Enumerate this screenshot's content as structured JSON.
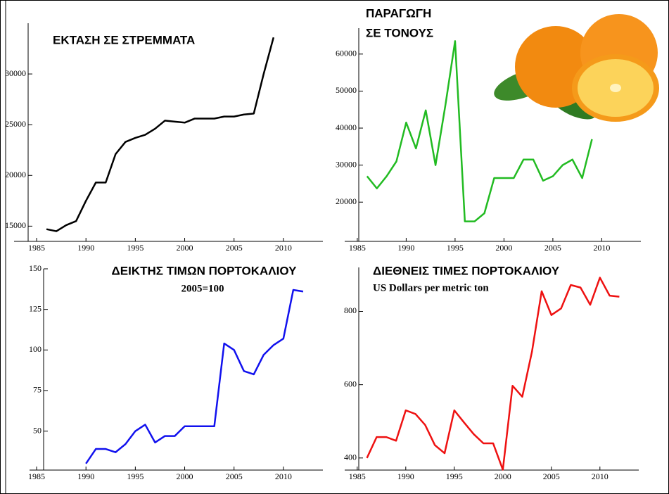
{
  "chart_data": [
    {
      "type": "line",
      "title": "ΕΚΤΑΣΗ ΣΕ ΣΤΡΕΜΜΑΤΑ",
      "x": [
        1986,
        1987,
        1988,
        1989,
        1990,
        1991,
        1992,
        1993,
        1994,
        1995,
        1996,
        1997,
        1998,
        1999,
        2000,
        2001,
        2002,
        2003,
        2004,
        2005,
        2006,
        2007,
        2008,
        2009
      ],
      "series": [
        {
          "color": "#000000",
          "values": [
            14700,
            14500,
            15100,
            15500,
            17500,
            19300,
            19300,
            22100,
            23300,
            23700,
            24000,
            24600,
            25400,
            25300,
            25200,
            25600,
            25600,
            25600,
            25800,
            25800,
            26000,
            26100,
            30000,
            33600
          ]
        }
      ],
      "xlim": [
        1984,
        2014
      ],
      "xticks": [
        1985,
        1990,
        1995,
        2000,
        2005,
        2010
      ],
      "ylim": [
        13500,
        35000
      ],
      "yticks": [
        15000,
        20000,
        25000,
        30000
      ]
    },
    {
      "type": "line",
      "title": "ΠΑΡΑΓΩΓΗ",
      "subtitle": "ΣΕ ΤΟΝΟΥΣ",
      "x": [
        1986,
        1987,
        1988,
        1989,
        1990,
        1991,
        1992,
        1993,
        1994,
        1995,
        1996,
        1997,
        1998,
        1999,
        2000,
        2001,
        2002,
        2003,
        2004,
        2005,
        2006,
        2007,
        2008,
        2009
      ],
      "series": [
        {
          "color": "#22bb22",
          "values": [
            27000,
            23700,
            27000,
            31000,
            41500,
            34500,
            44800,
            30000,
            46000,
            63500,
            14800,
            14800,
            17000,
            26500,
            26500,
            26500,
            31500,
            31500,
            25800,
            27000,
            30000,
            31500,
            26500,
            37000
          ]
        }
      ],
      "xlim": [
        1984,
        2014
      ],
      "xticks": [
        1985,
        1990,
        1995,
        2000,
        2005,
        2010
      ],
      "ylim": [
        9400,
        67000
      ],
      "yticks": [
        20000,
        30000,
        40000,
        50000,
        60000
      ]
    },
    {
      "type": "line",
      "title": "ΔΕΙΚΤΗΣ ΤΙΜΩΝ ΠΟΡΤΟΚΑΛΙΟΥ",
      "subtitle": "2005=100",
      "x": [
        1990,
        1991,
        1992,
        1993,
        1994,
        1995,
        1996,
        1997,
        1998,
        1999,
        2000,
        2001,
        2002,
        2003,
        2004,
        2005,
        2006,
        2007,
        2008,
        2009,
        2010,
        2011,
        2012
      ],
      "series": [
        {
          "color": "#1111ee",
          "values": [
            30,
            39,
            39,
            37,
            42,
            50,
            54,
            43,
            47,
            47,
            53,
            53,
            53,
            53,
            104,
            100,
            87,
            85,
            97,
            103,
            107,
            137,
            136
          ]
        }
      ],
      "xlim": [
        1984,
        2014
      ],
      "xticks": [
        1985,
        1990,
        1995,
        2000,
        2005,
        2010
      ],
      "ylim": [
        26,
        150
      ],
      "yticks": [
        50,
        75,
        100,
        125,
        150
      ]
    },
    {
      "type": "line",
      "title": "ΔΙΕΘΝΕΙΣ ΤΙΜΕΣ  ΠΟΡΤΟΚΑΛΙΟΥ",
      "subtitle": "US Dollars per metric ton",
      "x": [
        1986,
        1987,
        1988,
        1989,
        1990,
        1991,
        1992,
        1993,
        1994,
        1995,
        1996,
        1997,
        1998,
        1999,
        2000,
        2001,
        2002,
        2003,
        2004,
        2005,
        2006,
        2007,
        2008,
        2009,
        2010,
        2011,
        2012
      ],
      "series": [
        {
          "color": "#ee1111",
          "values": [
            400,
            457,
            457,
            447,
            530,
            520,
            490,
            435,
            413,
            530,
            497,
            465,
            440,
            440,
            368,
            597,
            567,
            690,
            855,
            790,
            808,
            872,
            865,
            818,
            892,
            843,
            840
          ]
        }
      ],
      "xlim": [
        1984,
        2014
      ],
      "xticks": [
        1985,
        1990,
        1995,
        2000,
        2005,
        2010
      ],
      "ylim": [
        367,
        920
      ],
      "yticks": [
        400,
        600,
        800
      ]
    }
  ]
}
